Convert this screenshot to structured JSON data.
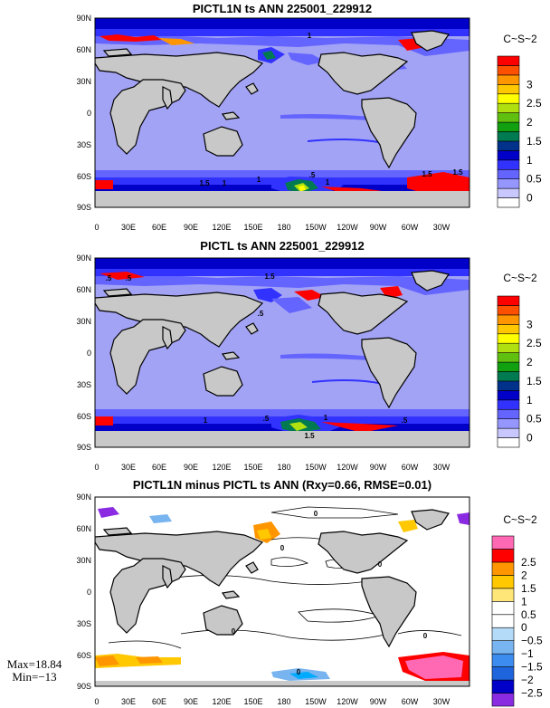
{
  "chart_data": [
    {
      "type": "heatmap",
      "title": "PICTL1N ts ANN 225001_229912",
      "units": "C~S~2",
      "xlabel": "",
      "ylabel": "",
      "xticks": [
        "0",
        "30E",
        "60E",
        "90E",
        "120E",
        "150E",
        "180",
        "150W",
        "120W",
        "90W",
        "60W",
        "30W"
      ],
      "yticks": [
        "90N",
        "60N",
        "30N",
        "0",
        "30S",
        "60S",
        "90S"
      ],
      "colorbar": {
        "levels": [
          "0",
          "0.5",
          "1",
          "1.5",
          "2",
          "2.5",
          "3"
        ],
        "colors": [
          "#ffffff",
          "#c8c8ff",
          "#9696ff",
          "#6464ff",
          "#3232ff",
          "#0000c8",
          "#00328c",
          "#007a50",
          "#10a010",
          "#60c010",
          "#b0e010",
          "#ffff00",
          "#ffc800",
          "#ff9600",
          "#ff5000",
          "#ff0000"
        ]
      },
      "background_color": "#a3a3f5",
      "land_color": "#c8c8c8",
      "contour_labels": [
        "1",
        "1",
        "1",
        "1.5",
        ".5",
        "1.5",
        "1",
        "1.5"
      ]
    },
    {
      "type": "heatmap",
      "title": "PICTL ts ANN 225001_229912",
      "units": "C~S~2",
      "xlabel": "",
      "ylabel": "",
      "xticks": [
        "0",
        "30E",
        "60E",
        "90E",
        "120E",
        "150E",
        "180",
        "150W",
        "120W",
        "90W",
        "60W",
        "30W"
      ],
      "yticks": [
        "90N",
        "60N",
        "30N",
        "0",
        "30S",
        "60S",
        "90S"
      ],
      "colorbar": {
        "levels": [
          "0",
          "0.5",
          "1",
          "1.5",
          "2",
          "2.5",
          "3"
        ],
        "colors": [
          "#ffffff",
          "#c8c8ff",
          "#9696ff",
          "#6464ff",
          "#3232ff",
          "#0000c8",
          "#00328c",
          "#007a50",
          "#10a010",
          "#60c010",
          "#b0e010",
          "#ffff00",
          "#ffc800",
          "#ff9600",
          "#ff5000",
          "#ff0000"
        ]
      },
      "background_color": "#a3a3f5",
      "land_color": "#c8c8c8",
      "contour_labels": [
        ".5",
        ".5",
        "1.5",
        ".5",
        "1",
        ".5",
        "1",
        ".5",
        "1.5"
      ]
    },
    {
      "type": "heatmap",
      "title": "PICTL1N minus PICTL ts ANN (Rxy=0.66, RMSE=0.01)",
      "units": "C~S~2",
      "xlabel": "",
      "ylabel": "",
      "xticks": [
        "0",
        "30E",
        "60E",
        "90E",
        "120E",
        "150E",
        "180",
        "150W",
        "120W",
        "90W",
        "60W",
        "30W"
      ],
      "yticks": [
        "90N",
        "60N",
        "30N",
        "0",
        "30S",
        "60S",
        "90S"
      ],
      "colorbar": {
        "levels": [
          "−2.5",
          "−2",
          "−1.5",
          "−1",
          "−0.5",
          "0",
          "0.5",
          "1",
          "1.5",
          "2",
          "2.5"
        ],
        "colors": [
          "#8a2be2",
          "#0000c8",
          "#1e64dc",
          "#3c8cf0",
          "#78b4f0",
          "#b4dcf8",
          "#ffffff",
          "#ffffff",
          "#ffe678",
          "#ffc800",
          "#ff9600",
          "#ff0000",
          "#ff69b4"
        ]
      },
      "background_color": "#ffffff",
      "land_color": "#c8c8c8",
      "stats": {
        "max": "Max=18.84",
        "min": "Min=−13"
      },
      "contour_labels": [
        "0",
        "0",
        "0",
        "0",
        "0",
        "0"
      ]
    }
  ]
}
